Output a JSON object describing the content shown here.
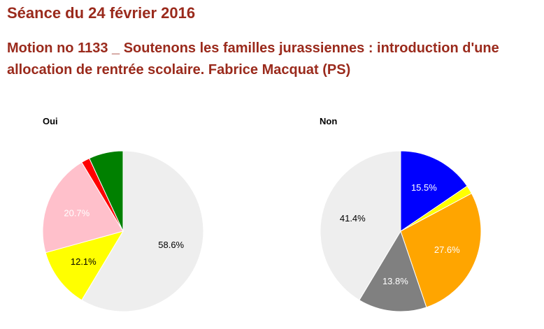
{
  "header": {
    "title": "Séance du 24 février 2016",
    "subtitle": "Motion no 1133 _ Soutenons les familles jurassiennes : introduction d'une allocation de rentrée scolaire. Fabrice Macquat (PS)"
  },
  "chart_data": [
    {
      "type": "pie",
      "title": "Oui",
      "slices": [
        {
          "value": 58.6,
          "color": "#eeeeee",
          "label": "58.6%",
          "label_color": "#000000"
        },
        {
          "value": 12.1,
          "color": "#ffff00",
          "label": "12.1%",
          "label_color": "#000000"
        },
        {
          "value": 20.7,
          "color": "#ffc0cb",
          "label": "20.7%",
          "label_color": "#ffffff"
        },
        {
          "value": 1.7,
          "color": "#ff0000",
          "label": "",
          "label_color": "#000000"
        },
        {
          "value": 6.9,
          "color": "#008000",
          "label": "",
          "label_color": "#ffffff"
        }
      ]
    },
    {
      "type": "pie",
      "title": "Non",
      "slices": [
        {
          "value": 15.5,
          "color": "#0000ff",
          "label": "15.5%",
          "label_color": "#ffffff"
        },
        {
          "value": 1.7,
          "color": "#ffff00",
          "label": "",
          "label_color": "#000000"
        },
        {
          "value": 27.6,
          "color": "#ffa500",
          "label": "27.6%",
          "label_color": "#ffffff"
        },
        {
          "value": 13.8,
          "color": "#808080",
          "label": "13.8%",
          "label_color": "#ffffff"
        },
        {
          "value": 41.4,
          "color": "#eeeeee",
          "label": "41.4%",
          "label_color": "#000000"
        }
      ]
    }
  ]
}
